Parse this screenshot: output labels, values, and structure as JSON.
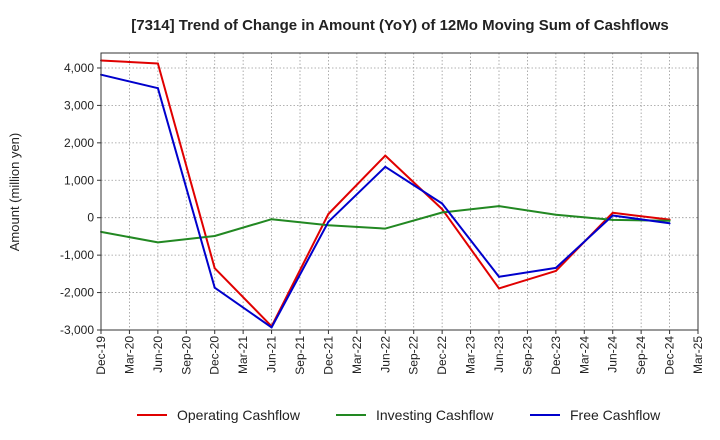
{
  "chart_data": {
    "type": "line",
    "title": "[7314]  Trend of Change in Amount (YoY) of 12Mo Moving Sum of Cashflows",
    "xlabel": "",
    "ylabel": "Amount (million yen)",
    "ylim": [
      -3000,
      4400
    ],
    "yticks": [
      -3000,
      -2000,
      -1000,
      0,
      1000,
      2000,
      3000,
      4000
    ],
    "ytick_labels": [
      "-3,000",
      "-2,000",
      "-1,000",
      "0",
      "1,000",
      "2,000",
      "3,000",
      "4,000"
    ],
    "x_labels": [
      "Dec-19",
      "Mar-20",
      "Jun-20",
      "Sep-20",
      "Dec-20",
      "Mar-21",
      "Jun-21",
      "Sep-21",
      "Dec-21",
      "Mar-22",
      "Jun-22",
      "Sep-22",
      "Dec-22",
      "Mar-23",
      "Jun-23",
      "Sep-23",
      "Dec-23",
      "Mar-24",
      "Jun-24",
      "Sep-24",
      "Dec-24",
      "Mar-25"
    ],
    "grid": true,
    "legend_position": "bottom",
    "series": [
      {
        "name": "Operating Cashflow",
        "color": "#e00000",
        "points": [
          [
            0,
            4200
          ],
          [
            2,
            4120
          ],
          [
            4,
            -1350
          ],
          [
            6,
            -2900
          ],
          [
            8,
            100
          ],
          [
            10,
            1660
          ],
          [
            12,
            230
          ],
          [
            14,
            -1890
          ],
          [
            16,
            -1420
          ],
          [
            18,
            130
          ],
          [
            20,
            -50
          ]
        ]
      },
      {
        "name": "Investing Cashflow",
        "color": "#228822",
        "points": [
          [
            0,
            -380
          ],
          [
            2,
            -660
          ],
          [
            4,
            -490
          ],
          [
            6,
            -40
          ],
          [
            8,
            -200
          ],
          [
            10,
            -290
          ],
          [
            12,
            140
          ],
          [
            14,
            310
          ],
          [
            16,
            80
          ],
          [
            18,
            -60
          ],
          [
            20,
            -80
          ]
        ]
      },
      {
        "name": "Free Cashflow",
        "color": "#0000cc",
        "points": [
          [
            0,
            3820
          ],
          [
            2,
            3460
          ],
          [
            4,
            -1870
          ],
          [
            6,
            -2930
          ],
          [
            8,
            -110
          ],
          [
            10,
            1360
          ],
          [
            12,
            380
          ],
          [
            14,
            -1580
          ],
          [
            16,
            -1340
          ],
          [
            18,
            60
          ],
          [
            20,
            -150
          ]
        ]
      }
    ]
  }
}
